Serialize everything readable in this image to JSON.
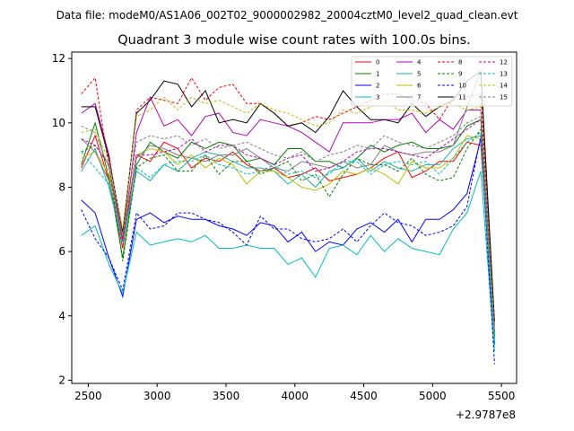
{
  "figure": {
    "suptitle": "Data file: modeM0/AS1A06_002T02_9000002982_20004cztM0_level2_quad_clean.evt"
  },
  "chart_data": {
    "type": "line",
    "title": "Quadrant 3 module wise count rates with 100.0s bins.",
    "xlabel": "",
    "ylabel": "",
    "x_offset_text": "+2.9787e8",
    "xlim": [
      2380,
      5610
    ],
    "ylim": [
      1.9,
      12.2
    ],
    "xticks": [
      2500,
      3000,
      3500,
      4000,
      4500,
      5000,
      5500
    ],
    "yticks": [
      2,
      4,
      6,
      8,
      10,
      12
    ],
    "grid": false,
    "legend": {
      "placement": "top-right",
      "ncol": 4
    },
    "x": [
      2450,
      2550,
      2650,
      2750,
      2850,
      2950,
      3050,
      3150,
      3250,
      3350,
      3450,
      3550,
      3650,
      3750,
      3850,
      3950,
      4050,
      4150,
      4250,
      4350,
      4450,
      4550,
      4650,
      4750,
      4850,
      4950,
      5050,
      5150,
      5250,
      5350,
      5450
    ],
    "series": [
      {
        "name": "0",
        "color": "#ff0000",
        "dash": false,
        "values": [
          8.6,
          9.6,
          8.2,
          6.1,
          9.0,
          8.8,
          9.4,
          9.2,
          8.6,
          8.9,
          8.8,
          9.1,
          8.7,
          8.5,
          8.6,
          8.3,
          8.4,
          8.6,
          8.2,
          8.3,
          8.4,
          8.6,
          8.9,
          9.1,
          8.3,
          8.5,
          8.8,
          8.8,
          9.4,
          9.3,
          3.3
        ]
      },
      {
        "name": "1",
        "color": "#008000",
        "dash": false,
        "values": [
          8.7,
          10.0,
          8.3,
          5.8,
          8.7,
          9.4,
          9.1,
          8.9,
          9.4,
          9.2,
          9.4,
          9.3,
          8.8,
          8.9,
          8.7,
          9.2,
          9.2,
          8.8,
          8.8,
          8.6,
          8.9,
          9.3,
          9.1,
          9.3,
          9.4,
          9.2,
          9.2,
          9.3,
          9.9,
          10.1,
          3.4
        ]
      },
      {
        "name": "2",
        "color": "#0000ff",
        "dash": false,
        "values": [
          7.6,
          7.2,
          5.8,
          4.6,
          7.0,
          7.2,
          6.9,
          7.1,
          7.0,
          7.0,
          6.8,
          6.7,
          6.5,
          6.9,
          6.8,
          6.3,
          6.6,
          6.0,
          6.3,
          6.2,
          6.7,
          6.9,
          6.6,
          7.0,
          6.3,
          7.0,
          7.0,
          7.3,
          7.8,
          9.5,
          3.1
        ]
      },
      {
        "name": "3",
        "color": "#00bfbf",
        "dash": false,
        "values": [
          6.5,
          6.8,
          5.6,
          4.7,
          6.6,
          6.2,
          6.3,
          6.4,
          6.3,
          6.5,
          6.1,
          6.1,
          6.2,
          6.1,
          6.1,
          5.6,
          5.8,
          5.2,
          6.1,
          6.2,
          5.9,
          6.5,
          6.0,
          6.4,
          6.1,
          6.0,
          5.9,
          6.7,
          7.2,
          8.5,
          2.9
        ]
      },
      {
        "name": "4",
        "color": "#bf00bf",
        "dash": false,
        "values": [
          10.3,
          10.6,
          9.0,
          6.3,
          9.7,
          10.8,
          9.9,
          10.1,
          9.6,
          10.2,
          10.3,
          9.7,
          9.6,
          10.1,
          10.0,
          9.9,
          9.7,
          9.4,
          9.1,
          10.0,
          10.0,
          10.0,
          10.1,
          10.1,
          10.3,
          9.7,
          10.1,
          9.8,
          10.4,
          10.4,
          3.7
        ]
      },
      {
        "name": "5",
        "color": "#20b2aa",
        "dash": false,
        "values": [
          8.5,
          9.2,
          8.0,
          6.3,
          8.5,
          8.2,
          8.7,
          8.5,
          8.9,
          9.1,
          9.0,
          8.8,
          8.6,
          8.6,
          8.5,
          8.1,
          8.4,
          8.0,
          8.5,
          8.6,
          8.9,
          8.5,
          8.8,
          8.6,
          8.5,
          8.7,
          8.7,
          9.2,
          9.5,
          9.6,
          3.3
        ]
      },
      {
        "name": "6",
        "color": "#bfbf00",
        "dash": false,
        "values": [
          8.9,
          9.1,
          8.4,
          6.5,
          9.0,
          9.2,
          9.1,
          8.7,
          9.0,
          8.6,
          8.9,
          8.7,
          8.1,
          8.5,
          8.5,
          8.3,
          8.0,
          7.9,
          8.1,
          8.5,
          8.4,
          8.6,
          8.4,
          8.1,
          8.8,
          8.6,
          8.6,
          8.9,
          9.6,
          9.5,
          3.3
        ]
      },
      {
        "name": "7",
        "color": "#808080",
        "dash": false,
        "values": [
          9.5,
          9.1,
          8.2,
          6.4,
          8.9,
          9.3,
          9.2,
          9.0,
          8.9,
          8.8,
          9.0,
          9.0,
          9.2,
          8.9,
          8.6,
          8.5,
          8.8,
          8.7,
          8.6,
          8.8,
          8.6,
          8.7,
          9.3,
          9.1,
          9.0,
          9.1,
          9.1,
          9.3,
          10.5,
          11.6,
          3.5
        ]
      },
      {
        "name": "8",
        "color": "#ff0000",
        "dash": true,
        "values": [
          10.9,
          11.4,
          8.6,
          6.4,
          10.4,
          10.8,
          10.7,
          10.6,
          11.4,
          10.7,
          11.1,
          11.2,
          10.6,
          10.6,
          10.3,
          9.9,
          10.0,
          10.2,
          10.1,
          10.3,
          10.5,
          10.7,
          10.9,
          10.9,
          10.7,
          10.6,
          10.1,
          10.8,
          10.8,
          10.9,
          3.8
        ]
      },
      {
        "name": "9",
        "color": "#008000",
        "dash": true,
        "values": [
          9.1,
          9.3,
          8.7,
          5.7,
          8.6,
          8.9,
          9.0,
          8.5,
          8.5,
          9.0,
          8.4,
          8.8,
          8.8,
          8.4,
          8.6,
          8.8,
          8.2,
          8.4,
          7.7,
          8.4,
          8.9,
          8.7,
          8.7,
          8.5,
          8.9,
          8.4,
          8.2,
          8.3,
          9.2,
          9.8,
          3.4
        ]
      },
      {
        "name": "10",
        "color": "#0000ff",
        "dash": true,
        "values": [
          7.3,
          6.4,
          5.8,
          4.8,
          7.2,
          6.7,
          6.8,
          7.2,
          7.2,
          7.0,
          6.9,
          6.6,
          6.2,
          7.1,
          6.7,
          6.7,
          6.4,
          6.3,
          6.4,
          6.7,
          6.3,
          6.8,
          7.2,
          6.9,
          6.8,
          6.5,
          6.6,
          6.8,
          7.4,
          9.6,
          2.5
        ]
      },
      {
        "name": "11",
        "color": "#000000",
        "dash": false,
        "values": [
          10.5,
          10.5,
          8.9,
          6.6,
          10.3,
          10.7,
          11.3,
          11.2,
          10.5,
          11.0,
          10.0,
          10.1,
          10.0,
          10.6,
          10.3,
          9.9,
          10.0,
          9.7,
          10.2,
          11.0,
          10.5,
          10.1,
          10.1,
          10.0,
          10.6,
          10.2,
          10.5,
          10.7,
          11.3,
          11.6,
          3.8
        ]
      },
      {
        "name": "12",
        "color": "#bf00bf",
        "dash": true,
        "values": [
          9.5,
          9.3,
          8.7,
          6.3,
          9.0,
          9.0,
          9.1,
          9.2,
          9.5,
          9.1,
          9.3,
          9.3,
          9.0,
          8.9,
          8.7,
          8.9,
          9.0,
          8.5,
          8.6,
          8.8,
          9.1,
          9.2,
          9.2,
          9.1,
          9.0,
          8.9,
          9.2,
          9.5,
          9.8,
          10.1,
          3.5
        ]
      },
      {
        "name": "13",
        "color": "#00bfbf",
        "dash": true,
        "values": [
          9.1,
          8.6,
          8.1,
          6.2,
          8.6,
          8.3,
          8.7,
          8.8,
          8.8,
          9.0,
          8.7,
          8.6,
          8.4,
          8.5,
          8.7,
          8.4,
          8.5,
          8.3,
          8.4,
          8.8,
          8.8,
          8.4,
          8.7,
          8.8,
          8.7,
          8.8,
          8.4,
          8.9,
          9.4,
          9.7,
          3.2
        ]
      },
      {
        "name": "14",
        "color": "#bfbf00",
        "dash": true,
        "values": [
          9.7,
          9.8,
          8.8,
          6.7,
          10.2,
          10.4,
          10.8,
          10.4,
          10.8,
          10.6,
          10.7,
          10.5,
          10.3,
          10.6,
          10.4,
          10.3,
          10.1,
          9.9,
          10.0,
          10.4,
          10.3,
          10.5,
          10.7,
          10.4,
          10.4,
          10.3,
          10.5,
          10.6,
          10.4,
          10.5,
          3.6
        ]
      },
      {
        "name": "15",
        "color": "#808080",
        "dash": true,
        "values": [
          9.9,
          9.7,
          8.6,
          6.5,
          9.4,
          9.6,
          9.5,
          9.6,
          9.3,
          9.5,
          9.2,
          9.3,
          9.4,
          9.2,
          9.0,
          8.9,
          9.1,
          8.8,
          9.0,
          9.1,
          9.3,
          9.2,
          9.6,
          9.4,
          9.3,
          9.2,
          9.4,
          9.6,
          10.0,
          10.2,
          3.5
        ]
      }
    ]
  }
}
